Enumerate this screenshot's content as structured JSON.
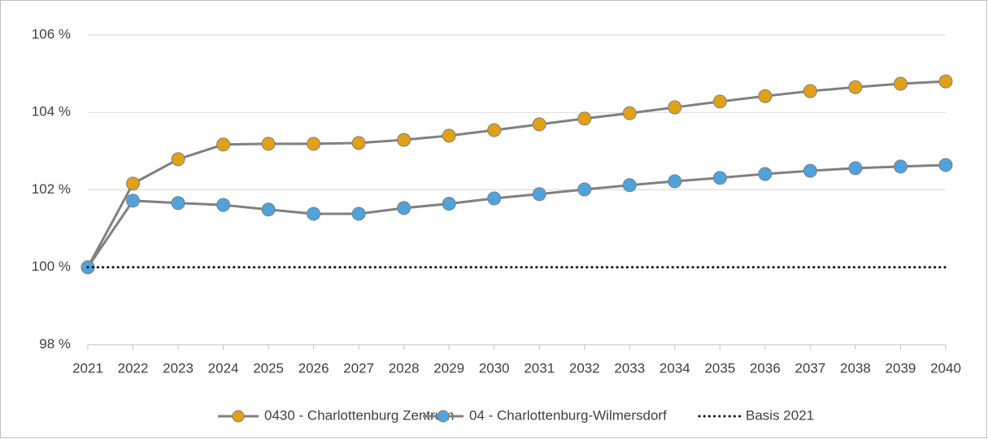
{
  "chart_data": {
    "type": "line",
    "categories": [
      "2021",
      "2022",
      "2023",
      "2024",
      "2025",
      "2026",
      "2027",
      "2028",
      "2029",
      "2030",
      "2031",
      "2032",
      "2033",
      "2034",
      "2035",
      "2036",
      "2037",
      "2038",
      "2039",
      "2040"
    ],
    "series": [
      {
        "name": "0430 - Charlottenburg Zentrum",
        "color": "#e1a116",
        "line_color": "#808080",
        "marker": true,
        "values": [
          100,
          102.16,
          102.79,
          103.17,
          103.19,
          103.19,
          103.21,
          103.29,
          103.4,
          103.54,
          103.69,
          103.84,
          103.98,
          104.13,
          104.28,
          104.42,
          104.55,
          104.65,
          104.74,
          104.8
        ]
      },
      {
        "name": "04 - Charlottenburg-Wilmersdorf",
        "color": "#4ea3dc",
        "line_color": "#808080",
        "marker": true,
        "values": [
          100,
          101.72,
          101.66,
          101.61,
          101.49,
          101.38,
          101.38,
          101.53,
          101.64,
          101.78,
          101.89,
          102.01,
          102.12,
          102.22,
          102.31,
          102.41,
          102.49,
          102.56,
          102.6,
          102.64
        ]
      },
      {
        "name": "Basis 2021",
        "color": "#000000",
        "line_color": "#000000",
        "marker": false,
        "style": "dotted",
        "values": [
          100,
          100,
          100,
          100,
          100,
          100,
          100,
          100,
          100,
          100,
          100,
          100,
          100,
          100,
          100,
          100,
          100,
          100,
          100,
          100
        ]
      }
    ],
    "ylim": [
      98,
      106
    ],
    "yticks": [
      {
        "value": 98,
        "label": "98 %"
      },
      {
        "value": 100,
        "label": "100 %"
      },
      {
        "value": 102,
        "label": "102 %"
      },
      {
        "value": 104,
        "label": "104 %"
      },
      {
        "value": 106,
        "label": "106 %"
      }
    ],
    "grid": true,
    "legend": "bottom"
  }
}
